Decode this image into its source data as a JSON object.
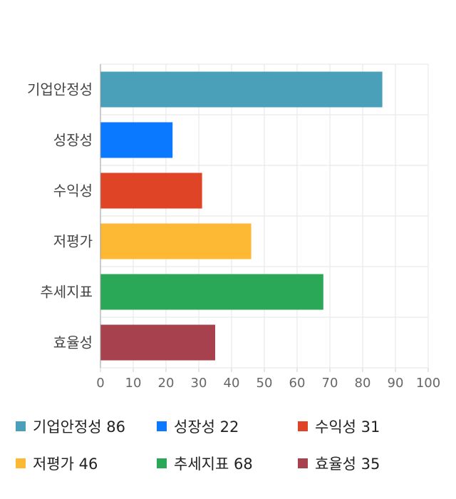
{
  "chart_data": {
    "type": "bar",
    "orientation": "horizontal",
    "categories": [
      "기업안정성",
      "성장성",
      "수익성",
      "저평가",
      "추세지표",
      "효율성"
    ],
    "values": [
      86,
      22,
      31,
      46,
      68,
      35
    ],
    "colors": [
      "#4aa0b8",
      "#0a78ff",
      "#e04426",
      "#fdb933",
      "#2aa757",
      "#a7414e"
    ],
    "xlim": [
      0,
      100
    ],
    "xticks": [
      "0",
      "10",
      "20",
      "30",
      "40",
      "50",
      "60",
      "70",
      "80",
      "90",
      "100"
    ],
    "grid": true,
    "legend_position": "bottom"
  },
  "legend": {
    "items": [
      {
        "label": "기업안정성 86",
        "color": "#4aa0b8"
      },
      {
        "label": "성장성 22",
        "color": "#0a78ff"
      },
      {
        "label": "수익성 31",
        "color": "#e04426"
      },
      {
        "label": "저평가 46",
        "color": "#fdb933"
      },
      {
        "label": "추세지표 68",
        "color": "#2aa757"
      },
      {
        "label": "효율성 35",
        "color": "#a7414e"
      }
    ]
  }
}
